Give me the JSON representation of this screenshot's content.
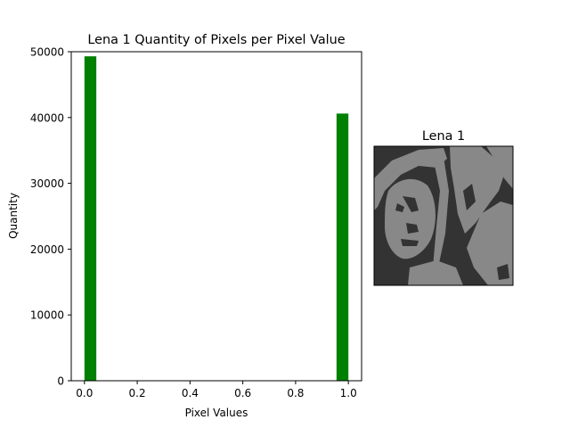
{
  "chart_data": [
    {
      "type": "bar",
      "title": "Lena 1 Quantity of Pixels per Pixel Value",
      "xlabel": "Pixel Values",
      "ylabel": "Quantity",
      "xlim": [
        -0.05,
        1.05
      ],
      "ylim": [
        0,
        50000
      ],
      "xticks": [
        "0.0",
        "0.2",
        "0.4",
        "0.6",
        "0.8",
        "1.0"
      ],
      "yticks": [
        "0",
        "10000",
        "20000",
        "30000",
        "40000",
        "50000"
      ],
      "bar_color": "#008000",
      "grid": false,
      "bars": [
        {
          "x_start": 0.0,
          "x_end": 0.045,
          "value": 49300
        },
        {
          "x_start": 0.955,
          "x_end": 1.0,
          "value": 40600
        }
      ]
    }
  ],
  "image_panel": {
    "title": "Lena 1",
    "dark_color": "#333333",
    "light_color": "#888888",
    "icon": "binary-portrait-thumbnail"
  }
}
